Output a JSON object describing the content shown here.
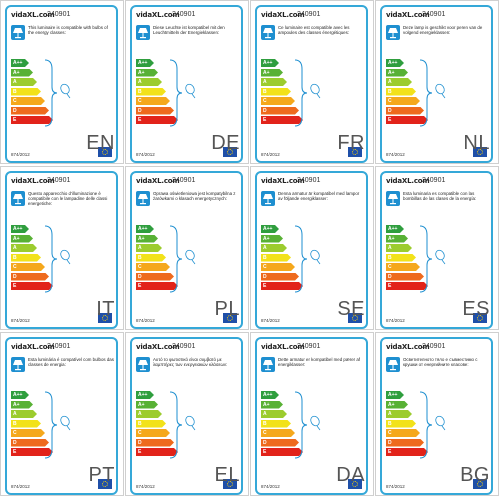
{
  "labels": [
    {
      "lang": "EN",
      "text": "This luminaire is compatible with bulbs of the energy classes:"
    },
    {
      "lang": "DE",
      "text": "Diese Leuchte ist kompatibel mit den Leuchtmitteln der Energieklassen:"
    },
    {
      "lang": "FR",
      "text": "Ce luminaire est compatible avec les ampoules des classes énergétiques:"
    },
    {
      "lang": "NL",
      "text": "Deze lamp is geschikt voor peren van de volgend energieklassen:"
    },
    {
      "lang": "IT",
      "text": "Questo apparecchio d'illuminazione è compatibile con le lampadine delle classi energetiche:"
    },
    {
      "lang": "PL",
      "text": "Oprawa oświetleniowa jest kompatybilna z żarówkami o klasach energetycznych:"
    },
    {
      "lang": "SE",
      "text": "Denna armatur är kompatibel med lampor av följande energiklasser:"
    },
    {
      "lang": "ES",
      "text": "Esta luminaria es compatible con las bombillas de las clases de la energía:"
    },
    {
      "lang": "PT",
      "text": "Esta luminária é compatível com bulbos das classes de energia:"
    },
    {
      "lang": "EL",
      "text": "Αυτό το φωτιστικό είναι συμβατό με λαμπτήρες των ενεργειακών κλάσεων:"
    },
    {
      "lang": "DA",
      "text": "Dette armatur er kompatibel med pærer af energiklasser:"
    },
    {
      "lang": "BG",
      "text": "Осветителното тяло е съвместимо с крушки от енергийните класове:"
    }
  ],
  "brand": "vidaXL.com",
  "code": "240901",
  "regulation": "874/2012",
  "classes": [
    {
      "label": "A++",
      "color": "#2f9e3e"
    },
    {
      "label": "A+",
      "color": "#58b135"
    },
    {
      "label": "A",
      "color": "#9ccc2e"
    },
    {
      "label": "B",
      "color": "#f2e21a"
    },
    {
      "label": "C",
      "color": "#f5a81c"
    },
    {
      "label": "D",
      "color": "#ee6a1d"
    },
    {
      "label": "E",
      "color": "#e2231a"
    }
  ]
}
